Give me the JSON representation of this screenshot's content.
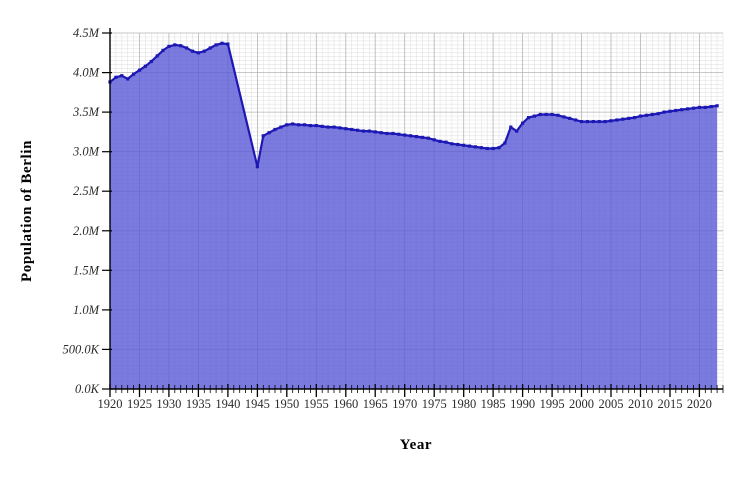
{
  "chart_data": {
    "type": "area",
    "xlabel": "Year",
    "ylabel": "Population of Berlin",
    "x_range": [
      1920,
      2024
    ],
    "y_range": [
      0,
      4500000
    ],
    "legend": "none",
    "grid": {
      "minor_x_years": 1,
      "major_x_years": 5,
      "minor_y": 50000,
      "major_y": 500000
    },
    "x_ticks": [
      {
        "value": 1920,
        "label": "1920"
      },
      {
        "value": 1925,
        "label": "1925"
      },
      {
        "value": 1930,
        "label": "1930"
      },
      {
        "value": 1935,
        "label": "1935"
      },
      {
        "value": 1940,
        "label": "1940"
      },
      {
        "value": 1945,
        "label": "1945"
      },
      {
        "value": 1950,
        "label": "1950"
      },
      {
        "value": 1955,
        "label": "1955"
      },
      {
        "value": 1960,
        "label": "1960"
      },
      {
        "value": 1965,
        "label": "1965"
      },
      {
        "value": 1970,
        "label": "1970"
      },
      {
        "value": 1975,
        "label": "1975"
      },
      {
        "value": 1980,
        "label": "1980"
      },
      {
        "value": 1985,
        "label": "1985"
      },
      {
        "value": 1990,
        "label": "1990"
      },
      {
        "value": 1995,
        "label": "1995"
      },
      {
        "value": 2000,
        "label": "2000"
      },
      {
        "value": 2005,
        "label": "2005"
      },
      {
        "value": 2010,
        "label": "2010"
      },
      {
        "value": 2015,
        "label": "2015"
      },
      {
        "value": 2020,
        "label": "2020"
      }
    ],
    "y_ticks": [
      {
        "value": 0,
        "label": "0.0K"
      },
      {
        "value": 500000,
        "label": "500.0K"
      },
      {
        "value": 1000000,
        "label": "1.0M"
      },
      {
        "value": 1500000,
        "label": "1.5M"
      },
      {
        "value": 2000000,
        "label": "2.0M"
      },
      {
        "value": 2500000,
        "label": "2.5M"
      },
      {
        "value": 3000000,
        "label": "3.0M"
      },
      {
        "value": 3500000,
        "label": "3.5M"
      },
      {
        "value": 4000000,
        "label": "4.0M"
      },
      {
        "value": 4500000,
        "label": "4.5M"
      }
    ],
    "series": [
      {
        "name": "Population of Berlin",
        "points": [
          [
            1920,
            3880000
          ],
          [
            1921,
            3940000
          ],
          [
            1922,
            3960000
          ],
          [
            1923,
            3920000
          ],
          [
            1924,
            3980000
          ],
          [
            1925,
            4030000
          ],
          [
            1926,
            4080000
          ],
          [
            1927,
            4140000
          ],
          [
            1928,
            4210000
          ],
          [
            1929,
            4280000
          ],
          [
            1930,
            4330000
          ],
          [
            1931,
            4350000
          ],
          [
            1932,
            4340000
          ],
          [
            1933,
            4310000
          ],
          [
            1934,
            4270000
          ],
          [
            1935,
            4250000
          ],
          [
            1936,
            4270000
          ],
          [
            1937,
            4310000
          ],
          [
            1938,
            4350000
          ],
          [
            1939,
            4370000
          ],
          [
            1940,
            4360000
          ],
          [
            1945,
            2810000
          ],
          [
            1946,
            3200000
          ],
          [
            1947,
            3240000
          ],
          [
            1948,
            3280000
          ],
          [
            1949,
            3310000
          ],
          [
            1950,
            3340000
          ],
          [
            1951,
            3350000
          ],
          [
            1952,
            3340000
          ],
          [
            1953,
            3340000
          ],
          [
            1954,
            3330000
          ],
          [
            1955,
            3330000
          ],
          [
            1956,
            3320000
          ],
          [
            1957,
            3310000
          ],
          [
            1958,
            3310000
          ],
          [
            1959,
            3300000
          ],
          [
            1960,
            3290000
          ],
          [
            1961,
            3280000
          ],
          [
            1962,
            3270000
          ],
          [
            1963,
            3260000
          ],
          [
            1964,
            3260000
          ],
          [
            1965,
            3250000
          ],
          [
            1966,
            3240000
          ],
          [
            1967,
            3230000
          ],
          [
            1968,
            3230000
          ],
          [
            1969,
            3220000
          ],
          [
            1970,
            3210000
          ],
          [
            1971,
            3200000
          ],
          [
            1972,
            3190000
          ],
          [
            1973,
            3180000
          ],
          [
            1974,
            3170000
          ],
          [
            1975,
            3150000
          ],
          [
            1976,
            3130000
          ],
          [
            1977,
            3120000
          ],
          [
            1978,
            3100000
          ],
          [
            1979,
            3090000
          ],
          [
            1980,
            3080000
          ],
          [
            1981,
            3070000
          ],
          [
            1982,
            3060000
          ],
          [
            1983,
            3050000
          ],
          [
            1984,
            3040000
          ],
          [
            1985,
            3040000
          ],
          [
            1986,
            3050000
          ],
          [
            1987,
            3110000
          ],
          [
            1988,
            3310000
          ],
          [
            1989,
            3260000
          ],
          [
            1990,
            3360000
          ],
          [
            1991,
            3430000
          ],
          [
            1992,
            3450000
          ],
          [
            1993,
            3470000
          ],
          [
            1994,
            3470000
          ],
          [
            1995,
            3470000
          ],
          [
            1996,
            3460000
          ],
          [
            1997,
            3440000
          ],
          [
            1998,
            3420000
          ],
          [
            1999,
            3400000
          ],
          [
            2000,
            3380000
          ],
          [
            2001,
            3380000
          ],
          [
            2002,
            3380000
          ],
          [
            2003,
            3380000
          ],
          [
            2004,
            3380000
          ],
          [
            2005,
            3390000
          ],
          [
            2006,
            3400000
          ],
          [
            2007,
            3410000
          ],
          [
            2008,
            3420000
          ],
          [
            2009,
            3430000
          ],
          [
            2010,
            3450000
          ],
          [
            2011,
            3460000
          ],
          [
            2012,
            3470000
          ],
          [
            2013,
            3480000
          ],
          [
            2014,
            3500000
          ],
          [
            2015,
            3510000
          ],
          [
            2016,
            3520000
          ],
          [
            2017,
            3530000
          ],
          [
            2018,
            3540000
          ],
          [
            2019,
            3550000
          ],
          [
            2020,
            3560000
          ],
          [
            2021,
            3560000
          ],
          [
            2022,
            3570000
          ],
          [
            2023,
            3580000
          ]
        ]
      }
    ],
    "colors": {
      "area_fill": "#5a5ad7",
      "area_opacity": 0.8,
      "line": "#1d18b4",
      "marker": "#1d18b4",
      "grid_minor": "#e2e2e2",
      "grid_major": "#b5b5b5",
      "axis": "#000000",
      "tick_label": "#2b2b2b"
    }
  }
}
